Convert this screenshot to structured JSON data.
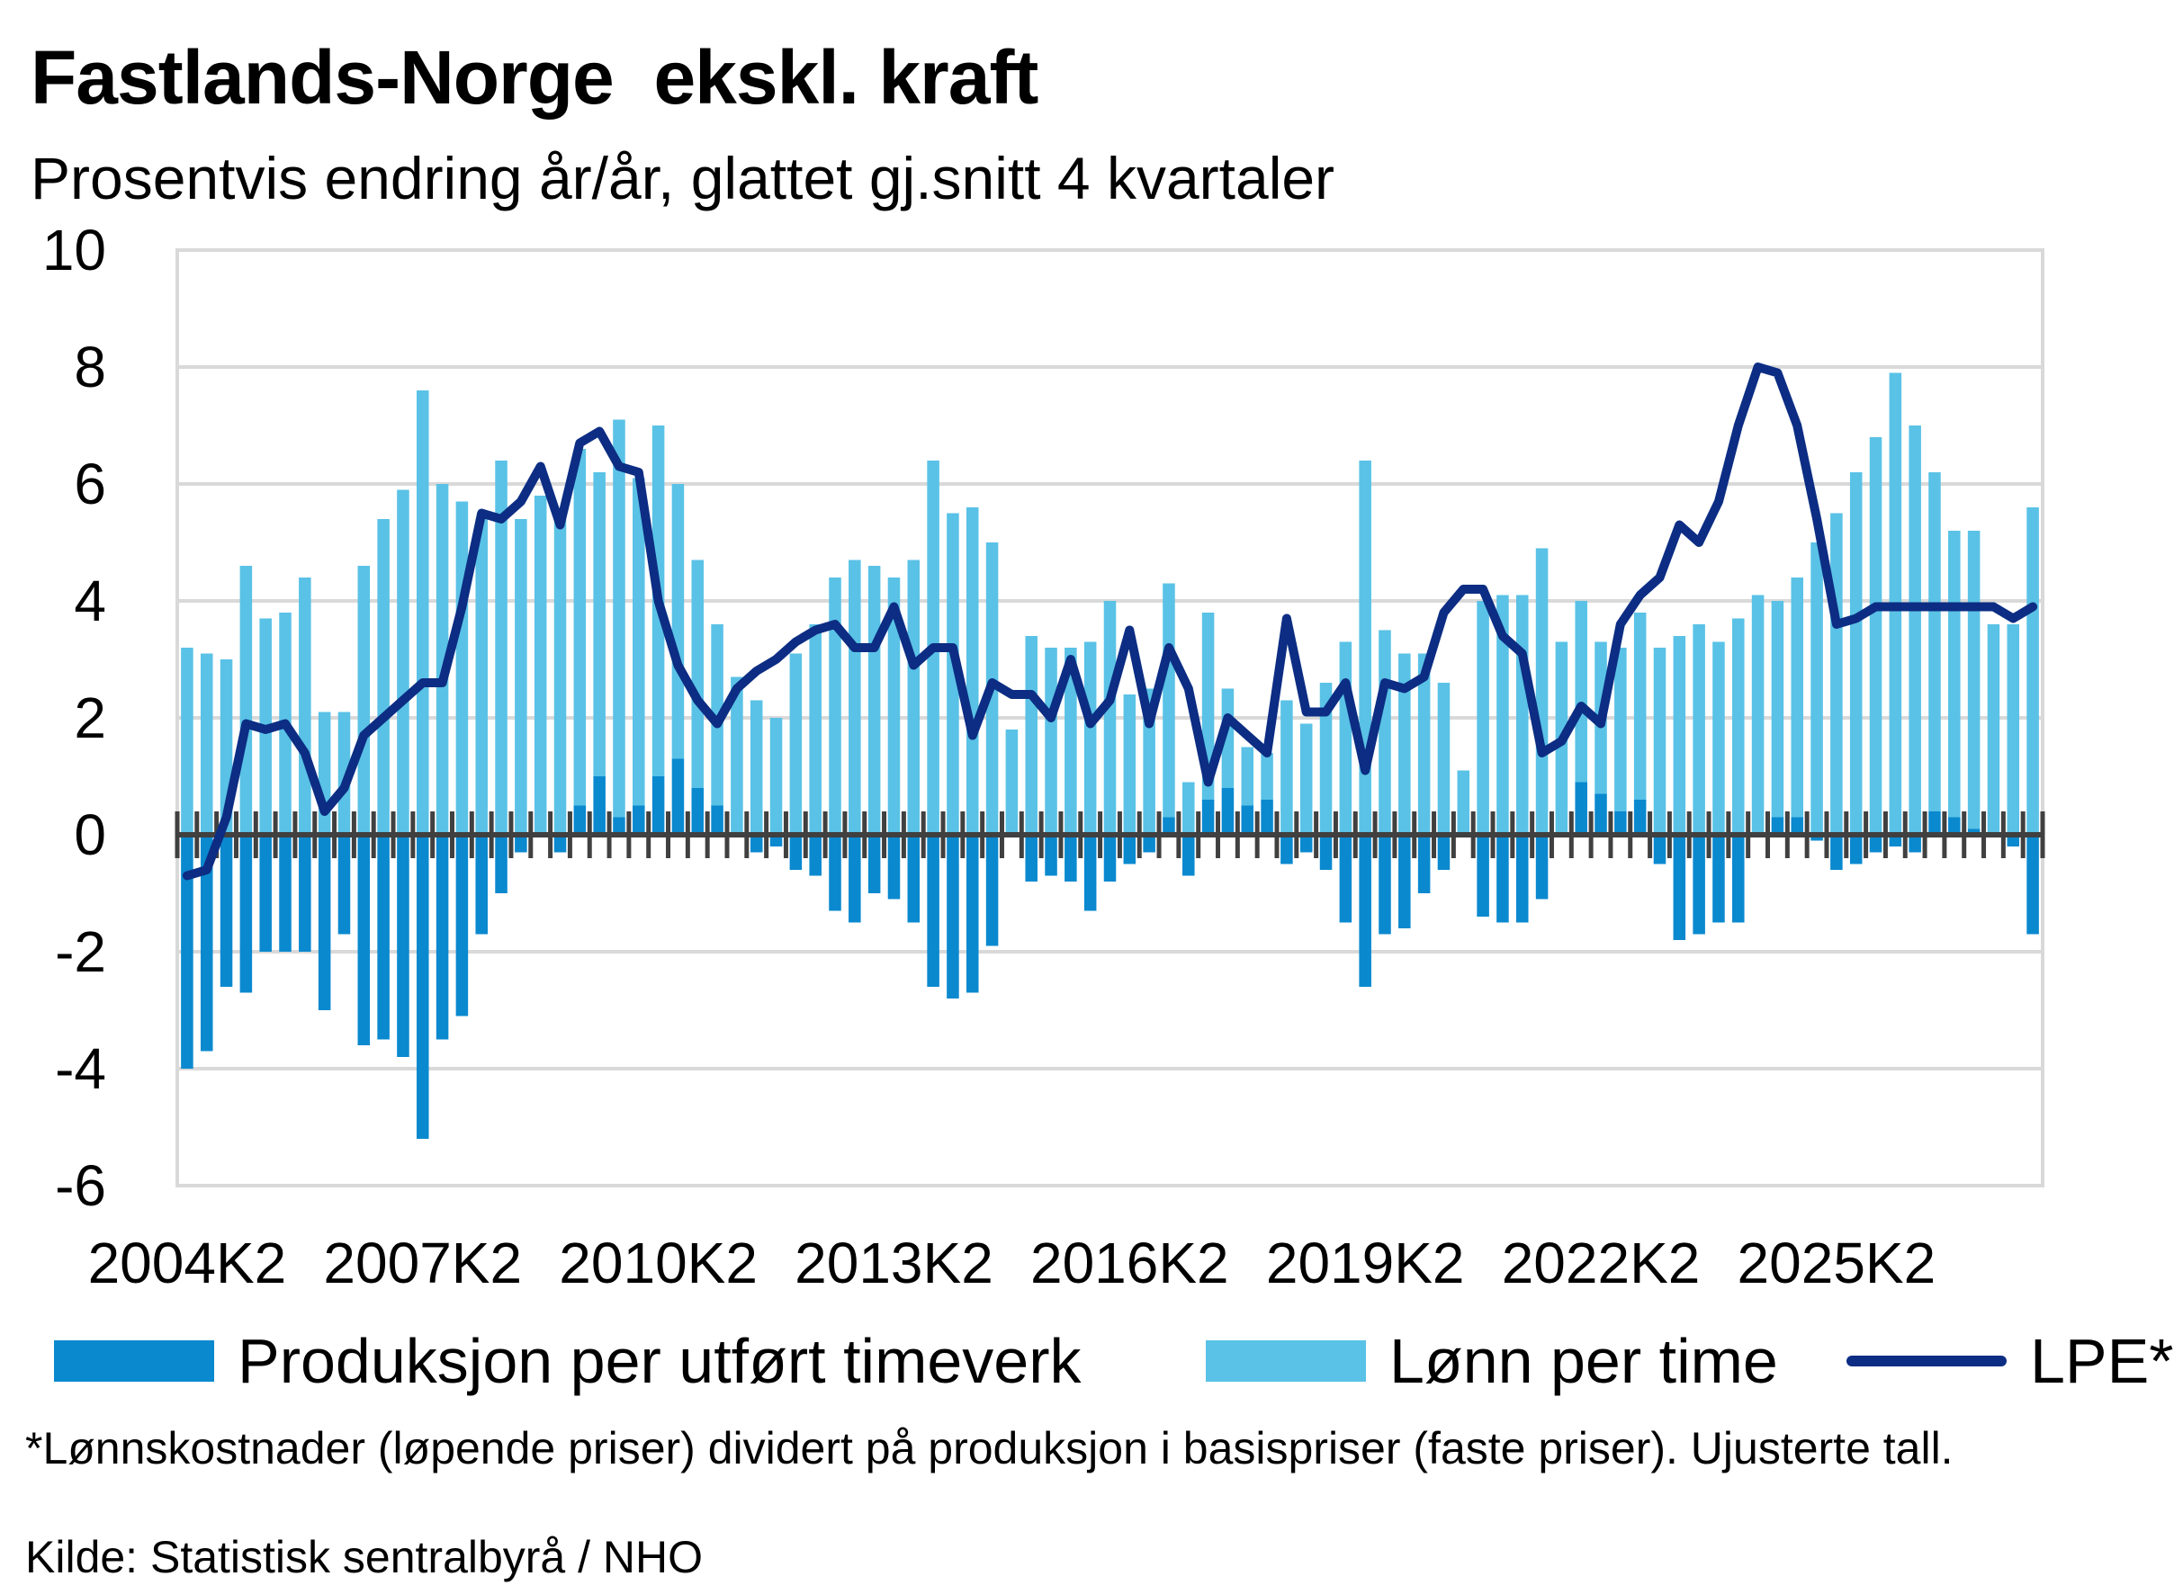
{
  "title": "Fastlands-Norge  ekskl. kraft",
  "subtitle": "Prosentvis endring år/år, glattet gj.snitt 4 kvartaler",
  "footnote": "*Lønnskostnader (løpende priser) dividert på produksjon i basispriser (faste priser). Ujusterte tall.",
  "source": "Kilde: Statistisk sentralbyrå / NHO",
  "colors": {
    "produksjon": "#0a89cf",
    "lonn": "#5ac2e6",
    "lpe": "#0c2d83",
    "grid": "#d9d9d9",
    "zero_axis": "#404040"
  },
  "chart_data": {
    "type": "bar",
    "stacked": true,
    "ylim": [
      -6,
      10
    ],
    "yticks": [
      -6,
      -4,
      -2,
      0,
      2,
      4,
      6,
      8,
      10
    ],
    "xticks_labels": [
      "2004K2",
      "2007K2",
      "2010K2",
      "2013K2",
      "2016K2",
      "2019K2",
      "2022K2",
      "2025K2"
    ],
    "start_quarter": "2004K2",
    "end_quarter": "2025K2",
    "grid": true,
    "legend_position": "bottom",
    "series": [
      {
        "name": "Produksjon per utført timeverk",
        "type": "bar",
        "values": [
          -4.0,
          -3.7,
          -2.6,
          -2.7,
          -2.0,
          -2.0,
          -2.0,
          -3.0,
          -1.7,
          -3.6,
          -3.5,
          -3.8,
          -5.2,
          -3.5,
          -3.1,
          -1.7,
          -1.0,
          -0.3,
          0.0,
          -0.3,
          0.5,
          1.0,
          0.3,
          0.5,
          1.0,
          1.3,
          0.8,
          0.5,
          0.0,
          -0.3,
          -0.2,
          -0.6,
          -0.7,
          -1.3,
          -1.5,
          -1.0,
          -1.1,
          -1.5,
          -2.6,
          -2.8,
          -2.7,
          -1.9,
          0.0,
          -0.8,
          -0.7,
          -0.8,
          -1.3,
          -0.8,
          -0.5,
          -0.3,
          0.3,
          -0.7,
          0.6,
          0.8,
          0.5,
          0.6,
          -0.5,
          -0.3,
          -0.6,
          -1.5,
          -2.6,
          -1.7,
          -1.6,
          -1.0,
          -0.6,
          0.0,
          -1.4,
          -1.5,
          -1.5,
          -1.1,
          0.0,
          0.9,
          0.7,
          0.4,
          0.6,
          -0.5,
          -1.8,
          -1.7,
          -1.5,
          -1.5,
          0.0,
          0.3,
          0.3,
          -0.1,
          -0.6,
          -0.5,
          -0.3,
          -0.2,
          -0.3,
          0.4,
          0.3,
          0.1,
          0.0,
          -0.2,
          -1.7
        ]
      },
      {
        "name": "Lønn per time",
        "type": "bar",
        "values": [
          3.2,
          3.1,
          3.0,
          4.6,
          3.7,
          3.8,
          4.4,
          2.1,
          2.1,
          4.6,
          5.4,
          5.9,
          7.6,
          6.0,
          5.7,
          5.4,
          6.4,
          5.4,
          5.8,
          5.5,
          6.1,
          5.2,
          6.8,
          5.6,
          6.0,
          4.7,
          3.9,
          3.1,
          2.7,
          2.3,
          2.0,
          3.1,
          3.6,
          4.4,
          4.7,
          4.6,
          4.4,
          4.7,
          6.4,
          5.5,
          5.6,
          5.0,
          1.8,
          3.4,
          3.2,
          3.2,
          3.3,
          4.0,
          2.4,
          2.5,
          4.0,
          0.9,
          3.2,
          1.7,
          1.0,
          0.8,
          2.3,
          1.9,
          2.6,
          3.3,
          6.4,
          3.5,
          3.1,
          3.1,
          2.6,
          1.1,
          4.0,
          4.1,
          4.1,
          4.9,
          3.3,
          3.1,
          2.6,
          2.8,
          3.2,
          3.2,
          3.4,
          3.6,
          3.3,
          3.7,
          4.1,
          3.7,
          4.1,
          5.0,
          5.5,
          6.2,
          6.8,
          7.9,
          7.0,
          5.8,
          4.9,
          5.1,
          3.6,
          3.6,
          5.6
        ]
      },
      {
        "name": "LPE*",
        "type": "line",
        "values": [
          -0.7,
          -0.6,
          0.3,
          1.9,
          1.8,
          1.9,
          1.4,
          0.4,
          0.8,
          1.7,
          2.0,
          2.3,
          2.6,
          2.6,
          3.9,
          5.5,
          5.4,
          5.7,
          6.3,
          5.3,
          6.7,
          6.9,
          6.3,
          6.2,
          4.0,
          2.9,
          2.3,
          1.9,
          2.5,
          2.8,
          3.0,
          3.3,
          3.5,
          3.6,
          3.2,
          3.2,
          3.9,
          2.9,
          3.2,
          3.2,
          1.7,
          2.6,
          2.4,
          2.4,
          2.0,
          3.0,
          1.9,
          2.3,
          3.5,
          1.9,
          3.2,
          2.5,
          0.9,
          2.0,
          1.7,
          1.4,
          3.7,
          2.1,
          2.1,
          2.6,
          1.1,
          2.6,
          2.5,
          2.7,
          3.8,
          4.2,
          4.2,
          3.4,
          3.1,
          1.4,
          1.6,
          2.2,
          1.9,
          3.6,
          4.1,
          4.4,
          5.3,
          5.0,
          5.7,
          7.0,
          8.0,
          7.9,
          7.0,
          5.4,
          3.6,
          3.7,
          3.9,
          3.9,
          3.9,
          3.9,
          3.9,
          3.9,
          3.9,
          3.7,
          3.9
        ]
      }
    ]
  },
  "legend": [
    {
      "label": "Produksjon per utført timeverk"
    },
    {
      "label": "Lønn per time"
    },
    {
      "label": "LPE*"
    }
  ]
}
